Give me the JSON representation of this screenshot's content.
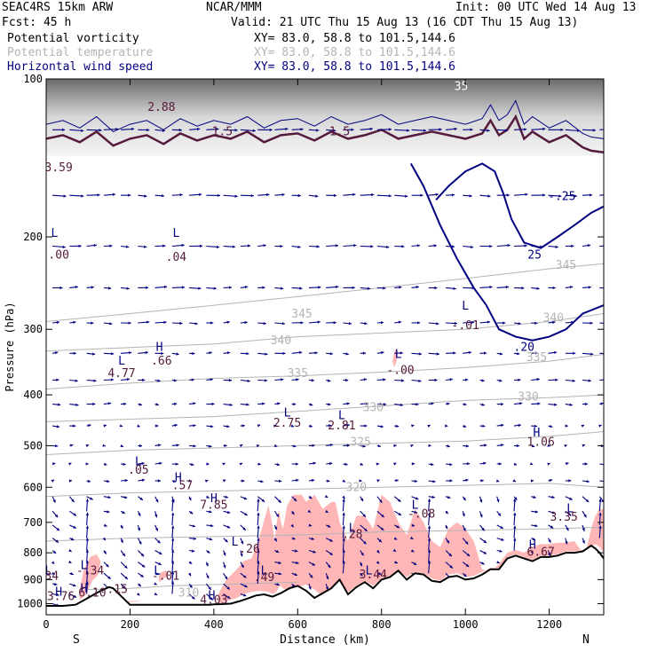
{
  "header": {
    "model": "SEAC4RS 15km ARW",
    "forecast": "Fcst:    45 h",
    "institution": "NCAR/MMM",
    "init": "Init: 00 UTC Wed 14 Aug 13",
    "valid": "Valid: 21 UTC Thu 15 Aug 13 (16 CDT Thu 15 Aug 13)"
  },
  "fields": [
    {
      "name": "Potential vorticity",
      "xy": "XY=   83.0, 58.8 to 101.5,144.6",
      "color": "#000000"
    },
    {
      "name": "Potential temperature",
      "xy": "XY=   83.0, 58.8 to 101.5,144.6",
      "color": "#b4b4b4"
    },
    {
      "name": "Horizontal wind speed",
      "xy": "XY=   83.0, 58.8 to 101.5,144.6",
      "color": "#000080"
    }
  ],
  "colors": {
    "pv_fill": "#ffb6b6",
    "theta": "#b4b4b4",
    "wind": "#000080",
    "terrain": "#000000",
    "tropopause": "#551a3c",
    "grey_shade": "#9a9a9a"
  },
  "chart_data": {
    "type": "cross-section",
    "title": "",
    "xlabel": "Distance (km)",
    "ylabel": "Pressure (hPa)",
    "xlim": [
      0,
      1330
    ],
    "ylim": [
      1050,
      100
    ],
    "x_ticks": [
      0,
      200,
      400,
      600,
      800,
      1000,
      1200
    ],
    "y_ticks": [
      100,
      200,
      300,
      400,
      500,
      600,
      700,
      800,
      900,
      1000
    ],
    "x_end_labels": {
      "left": "S",
      "right": "N"
    },
    "terrain": {
      "x": [
        0,
        40,
        70,
        90,
        110,
        130,
        150,
        160,
        180,
        200,
        220,
        240,
        270,
        300,
        330,
        360,
        390,
        400,
        420,
        440,
        460,
        480,
        500,
        520,
        540,
        560,
        580,
        600,
        620,
        640,
        660,
        680,
        700,
        720,
        740,
        760,
        780,
        800,
        820,
        840,
        860,
        880,
        900,
        920,
        940,
        960,
        980,
        1000,
        1020,
        1040,
        1060,
        1080,
        1100,
        1120,
        1140,
        1160,
        1180,
        1200,
        1220,
        1240,
        1260,
        1280,
        1290,
        1300,
        1310,
        1320,
        1330
      ],
      "p": [
        1010,
        1010,
        1005,
        985,
        965,
        945,
        930,
        935,
        970,
        1005,
        1005,
        1005,
        1005,
        1005,
        1005,
        1005,
        1005,
        1003,
        1002,
        1000,
        990,
        978,
        965,
        960,
        970,
        955,
        935,
        925,
        945,
        975,
        955,
        935,
        900,
        960,
        930,
        910,
        935,
        900,
        890,
        865,
        900,
        875,
        880,
        905,
        910,
        890,
        885,
        900,
        895,
        880,
        860,
        860,
        820,
        810,
        820,
        830,
        815,
        815,
        810,
        800,
        800,
        795,
        785,
        775,
        785,
        800,
        820
      ]
    },
    "pv_fill_regions": [
      {
        "x": [
          410,
          430,
          455,
          470,
          490,
          510,
          530,
          540,
          545,
          550,
          555,
          560,
          565,
          575,
          590,
          600,
          610,
          620,
          640,
          660,
          680,
          690,
          700,
          720,
          740,
          760,
          780,
          800,
          820,
          840,
          860,
          880,
          900,
          920,
          940,
          960,
          980,
          1000,
          1020,
          1040,
          1060,
          1080,
          1100,
          1120,
          1140,
          1160,
          1180,
          1200,
          1220,
          1240,
          1260,
          1280,
          1300,
          1310,
          1320,
          1330,
          1330,
          1320,
          1310,
          1300,
          1290,
          1280,
          1270,
          1260,
          1240,
          1220,
          1200,
          1180,
          1160,
          1140,
          1120,
          1100,
          1080,
          1060,
          1040,
          1020,
          1000,
          980,
          960,
          940,
          920,
          900,
          880,
          860,
          840,
          820,
          800,
          780,
          760,
          740,
          720,
          700,
          690,
          680,
          660,
          640,
          620,
          610,
          600,
          590,
          575,
          565,
          560,
          555,
          550,
          545,
          540,
          530,
          510,
          490,
          470,
          455,
          430,
          410
        ],
        "p": [
          1000,
          990,
          975,
          960,
          950,
          945,
          950,
          958,
          955,
          948,
          930,
          925,
          935,
          945,
          940,
          935,
          925,
          920,
          940,
          970,
          955,
          930,
          905,
          950,
          925,
          905,
          925,
          895,
          885,
          865,
          890,
          870,
          875,
          895,
          905,
          880,
          875,
          890,
          885,
          870,
          855,
          855,
          815,
          805,
          815,
          825,
          810,
          810,
          805,
          795,
          795,
          790,
          780,
          770,
          780,
          800,
          660,
          660,
          680,
          720,
          780,
          800,
          780,
          760,
          765,
          765,
          770,
          770,
          780,
          800,
          790,
          800,
          840,
          870,
          860,
          760,
          720,
          700,
          720,
          780,
          760,
          700,
          660,
          740,
          700,
          640,
          620,
          720,
          680,
          680,
          760,
          700,
          640,
          640,
          660,
          620,
          640,
          620,
          620,
          620,
          650,
          720,
          700,
          660,
          700,
          760,
          710,
          650,
          740,
          820,
          830,
          860,
          900,
          960
        ]
      }
    ],
    "pv_blobs": [
      {
        "x": [
          80,
          95,
          110,
          125,
          130,
          120,
          105,
          90,
          80
        ],
        "p": [
          985,
          960,
          905,
          880,
          830,
          805,
          815,
          860,
          940
        ]
      },
      {
        "x": [
          270,
          280,
          290,
          292,
          285,
          275,
          268
        ],
        "p": [
          910,
          895,
          885,
          875,
          865,
          870,
          890
        ]
      },
      {
        "x": [
          140,
          170,
          210,
          230,
          215,
          180,
          145
        ],
        "p": [
          1000,
          998,
          992,
          990,
          988,
          990,
          996
        ]
      },
      {
        "x": [
          830,
          836,
          840,
          832,
          826
        ],
        "p": [
          355,
          345,
          330,
          328,
          345
        ]
      }
    ],
    "tropopause_fold": {
      "x": [
        0,
        40,
        80,
        120,
        160,
        200,
        240,
        280,
        320,
        360,
        400,
        440,
        480,
        520,
        560,
        600,
        640,
        680,
        720,
        760,
        800,
        840,
        880,
        920,
        960,
        1000,
        1040,
        1060,
        1080,
        1100,
        1120,
        1140,
        1160,
        1200,
        1240,
        1280,
        1300,
        1330
      ],
      "p": [
        130,
        128,
        132,
        126,
        134,
        130,
        128,
        133,
        127,
        131,
        128,
        130,
        126,
        132,
        128,
        127,
        131,
        126,
        130,
        128,
        125,
        130,
        128,
        126,
        128,
        130,
        127,
        120,
        128,
        125,
        118,
        130,
        126,
        132,
        128,
        135,
        137,
        138
      ]
    },
    "theta_contours": [
      {
        "level": "345",
        "x": [
          0,
          200,
          400,
          600,
          800,
          1000,
          1200,
          1330
        ],
        "p": [
          290,
          280,
          270,
          260,
          250,
          240,
          230,
          225
        ]
      },
      {
        "level": "340",
        "x": [
          0,
          200,
          400,
          600,
          800,
          1000,
          1200,
          1330
        ],
        "p": [
          330,
          325,
          320,
          310,
          305,
          300,
          290,
          280
        ]
      },
      {
        "level": "335",
        "x": [
          0,
          200,
          400,
          600,
          800,
          1000,
          1200,
          1330
        ],
        "p": [
          390,
          380,
          372,
          368,
          362,
          355,
          345,
          335
        ]
      },
      {
        "level": "330",
        "x": [
          0,
          200,
          400,
          600,
          800,
          1000,
          1200,
          1330
        ],
        "p": [
          450,
          445,
          440,
          430,
          420,
          410,
          405,
          400
        ]
      },
      {
        "level": "325",
        "x": [
          0,
          200,
          400,
          600,
          800,
          1000,
          1200,
          1330
        ],
        "p": [
          520,
          510,
          505,
          500,
          495,
          490,
          480,
          470
        ]
      },
      {
        "level": "320",
        "x": [
          0,
          200,
          400,
          600,
          800,
          1000,
          1200,
          1330
        ],
        "p": [
          625,
          615,
          610,
          605,
          600,
          595,
          590,
          600
        ]
      },
      {
        "level": "315",
        "x": [
          0,
          200,
          400,
          600,
          800,
          1000,
          1200,
          1330
        ],
        "p": [
          760,
          750,
          745,
          740,
          730,
          725,
          720,
          715
        ]
      },
      {
        "level": "310",
        "x": [
          100,
          200,
          300,
          400,
          500,
          600
        ],
        "p": [
          940,
          935,
          925,
          920,
          915,
          910
        ]
      }
    ],
    "theta_labels": [
      {
        "text": "345",
        "x": 610,
        "p": 285
      },
      {
        "text": "340",
        "x": 560,
        "p": 320
      },
      {
        "text": "335",
        "x": 600,
        "p": 370
      },
      {
        "text": "330",
        "x": 780,
        "p": 430
      },
      {
        "text": "330",
        "x": 1150,
        "p": 410
      },
      {
        "text": "325",
        "x": 750,
        "p": 500
      },
      {
        "text": "320",
        "x": 740,
        "p": 610
      },
      {
        "text": "335",
        "x": 1170,
        "p": 345
      },
      {
        "text": "340",
        "x": 1210,
        "p": 290
      },
      {
        "text": "345",
        "x": 1240,
        "p": 230
      },
      {
        "text": "310",
        "x": 340,
        "p": 970
      }
    ],
    "wind_contours": [
      {
        "level": "25",
        "x": [
          930,
          960,
          1000,
          1040,
          1070,
          1090,
          1110,
          1140,
          1180,
          1220,
          1260,
          1300,
          1330
        ],
        "p": [
          170,
          160,
          150,
          145,
          150,
          165,
          185,
          205,
          210,
          200,
          190,
          180,
          175
        ]
      },
      {
        "level": "20",
        "x": [
          870,
          900,
          940,
          980,
          1020,
          1050,
          1080,
          1120,
          1160,
          1200,
          1240,
          1280,
          1330
        ],
        "p": [
          145,
          160,
          190,
          220,
          250,
          270,
          300,
          310,
          315,
          310,
          300,
          280,
          270
        ]
      }
    ],
    "wind_labels": [
      {
        "text": "25",
        "x": 1165,
        "p": 220
      },
      {
        "text": ".20",
        "x": 1140,
        "p": 330
      },
      {
        "text": "-.25",
        "x": 1230,
        "p": 170
      }
    ],
    "pv_labels": [
      {
        "text": "2.88",
        "x": 275,
        "p": 115
      },
      {
        "text": "1.5",
        "x": 420,
        "p": 128
      },
      {
        "text": "1.5",
        "x": 700,
        "p": 128
      },
      {
        "text": "3.59",
        "x": 30,
        "p": 150
      },
      {
        "text": "L",
        "x": 20,
        "p": 200
      },
      {
        "text": ".00",
        "x": 30,
        "p": 220
      },
      {
        "text": "L",
        "x": 310,
        "p": 200
      },
      {
        "text": ".04",
        "x": 310,
        "p": 222
      },
      {
        "text": "L",
        "x": 1000,
        "p": 275
      },
      {
        "text": "-.01",
        "x": 1000,
        "p": 300
      },
      {
        "text": "H",
        "x": 270,
        "p": 330
      },
      {
        "text": ".66",
        "x": 275,
        "p": 350
      },
      {
        "text": "L",
        "x": 180,
        "p": 350
      },
      {
        "text": "4.77",
        "x": 180,
        "p": 370
      },
      {
        "text": "L",
        "x": 840,
        "p": 340
      },
      {
        "text": "-.00",
        "x": 845,
        "p": 365
      },
      {
        "text": "L",
        "x": 575,
        "p": 440
      },
      {
        "text": "2.75",
        "x": 575,
        "p": 460
      },
      {
        "text": "L",
        "x": 705,
        "p": 445
      },
      {
        "text": "2.81",
        "x": 705,
        "p": 465
      },
      {
        "text": "H",
        "x": 1170,
        "p": 480
      },
      {
        "text": "1.06",
        "x": 1180,
        "p": 500
      },
      {
        "text": "L",
        "x": 220,
        "p": 545
      },
      {
        "text": ".05",
        "x": 220,
        "p": 565
      },
      {
        "text": "H",
        "x": 315,
        "p": 585
      },
      {
        "text": ".57",
        "x": 325,
        "p": 605
      },
      {
        "text": "H",
        "x": 400,
        "p": 640
      },
      {
        "text": "7.85",
        "x": 400,
        "p": 660
      },
      {
        "text": "L",
        "x": 880,
        "p": 660
      },
      {
        "text": "-.08",
        "x": 895,
        "p": 685
      },
      {
        "text": "L",
        "x": 1250,
        "p": 670
      },
      {
        "text": "3.35",
        "x": 1235,
        "p": 695
      },
      {
        "text": "L",
        "x": 730,
        "p": 730
      },
      {
        "text": ".28",
        "x": 730,
        "p": 750
      },
      {
        "text": "L",
        "x": 450,
        "p": 775
      },
      {
        "text": ".26",
        "x": 485,
        "p": 800
      },
      {
        "text": "H",
        "x": 1160,
        "p": 785
      },
      {
        "text": "6.67",
        "x": 1180,
        "p": 810
      },
      {
        "text": "L",
        "x": 90,
        "p": 860
      },
      {
        "text": "-.34",
        "x": 105,
        "p": 880
      },
      {
        "text": "L",
        "x": 265,
        "p": 880
      },
      {
        "text": "-.01",
        "x": 285,
        "p": 900
      },
      {
        "text": "L",
        "x": 520,
        "p": 880
      },
      {
        "text": ".49",
        "x": 520,
        "p": 905
      },
      {
        "text": "L",
        "x": 770,
        "p": 880
      },
      {
        "text": "3.44",
        "x": 780,
        "p": 895
      },
      {
        "text": "L",
        "x": 5,
        "p": 880
      },
      {
        "text": ".34",
        "x": 5,
        "p": 900
      },
      {
        "text": "H",
        "x": 90,
        "p": 950
      },
      {
        "text": "H",
        "x": 30,
        "p": 965
      },
      {
        "text": "6.10",
        "x": 110,
        "p": 970
      },
      {
        "text": "3.76",
        "x": 35,
        "p": 985
      },
      {
        "text": ".15",
        "x": 170,
        "p": 955
      },
      {
        "text": "H",
        "x": 395,
        "p": 980
      },
      {
        "text": "4.03",
        "x": 400,
        "p": 1000
      }
    ],
    "top_shade_labels": [
      {
        "text": "35",
        "x": 990,
        "p": 105
      }
    ],
    "wind_field": {
      "columns": 33,
      "rows": 22,
      "note": "arrow vectors, generally westerly aloft, weak with ascent in lower levels"
    }
  }
}
